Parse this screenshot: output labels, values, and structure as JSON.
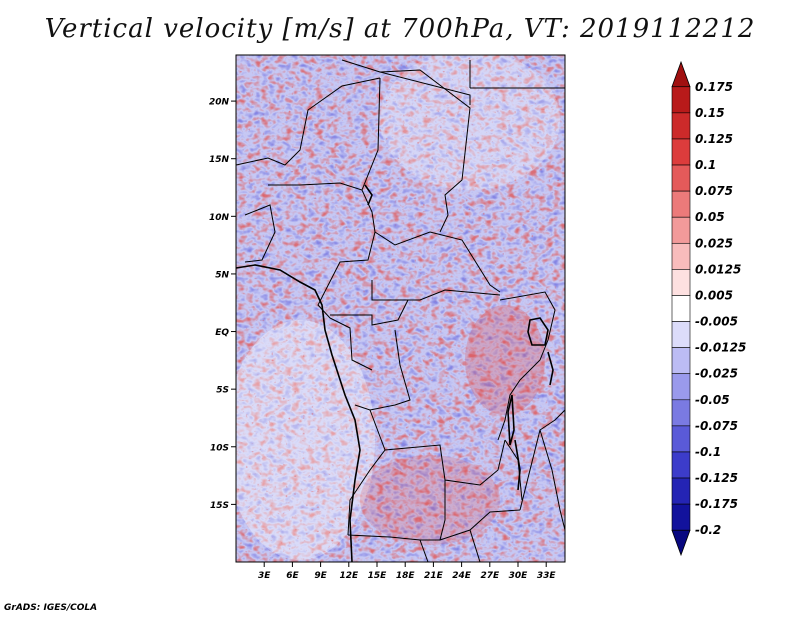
{
  "title": "Vertical velocity [m/s] at 700hPa, VT: 2019112212",
  "footer": "GrADS: IGES/COLA",
  "map": {
    "lon_range": [
      0,
      35
    ],
    "lat_range": [
      -20,
      24
    ],
    "lat_ticks": [
      {
        "value": 20,
        "label": "20N"
      },
      {
        "value": 15,
        "label": "15N"
      },
      {
        "value": 10,
        "label": "10N"
      },
      {
        "value": 5,
        "label": "5N"
      },
      {
        "value": 0,
        "label": "EQ"
      },
      {
        "value": -5,
        "label": "5S"
      },
      {
        "value": -10,
        "label": "10S"
      },
      {
        "value": -15,
        "label": "15S"
      }
    ],
    "lon_ticks": [
      {
        "value": 3,
        "label": "3E"
      },
      {
        "value": 6,
        "label": "6E"
      },
      {
        "value": 9,
        "label": "9E"
      },
      {
        "value": 12,
        "label": "12E"
      },
      {
        "value": 15,
        "label": "15E"
      },
      {
        "value": 18,
        "label": "18E"
      },
      {
        "value": 21,
        "label": "21E"
      },
      {
        "value": 24,
        "label": "24E"
      },
      {
        "value": 27,
        "label": "27E"
      },
      {
        "value": 30,
        "label": "30E"
      },
      {
        "value": 33,
        "label": "33E"
      }
    ]
  },
  "colorbar": {
    "levels": [
      "0.175",
      "0.15",
      "0.125",
      "0.1",
      "0.075",
      "0.05",
      "0.025",
      "0.0125",
      "0.005",
      "-0.005",
      "-0.0125",
      "-0.025",
      "-0.05",
      "-0.075",
      "-0.1",
      "-0.125",
      "-0.175",
      "-0.2"
    ],
    "colors": [
      "#a01010",
      "#b81a1a",
      "#cc2a2a",
      "#dc3c3c",
      "#e45a5a",
      "#ec7a7a",
      "#f29a9a",
      "#f8bcbc",
      "#fde0e0",
      "#ffffff",
      "#dcdcfa",
      "#bcbcf4",
      "#9a9aec",
      "#7a7ae2",
      "#5a5ad8",
      "#3c3cca",
      "#2424b4",
      "#12129c",
      "#080880"
    ]
  }
}
